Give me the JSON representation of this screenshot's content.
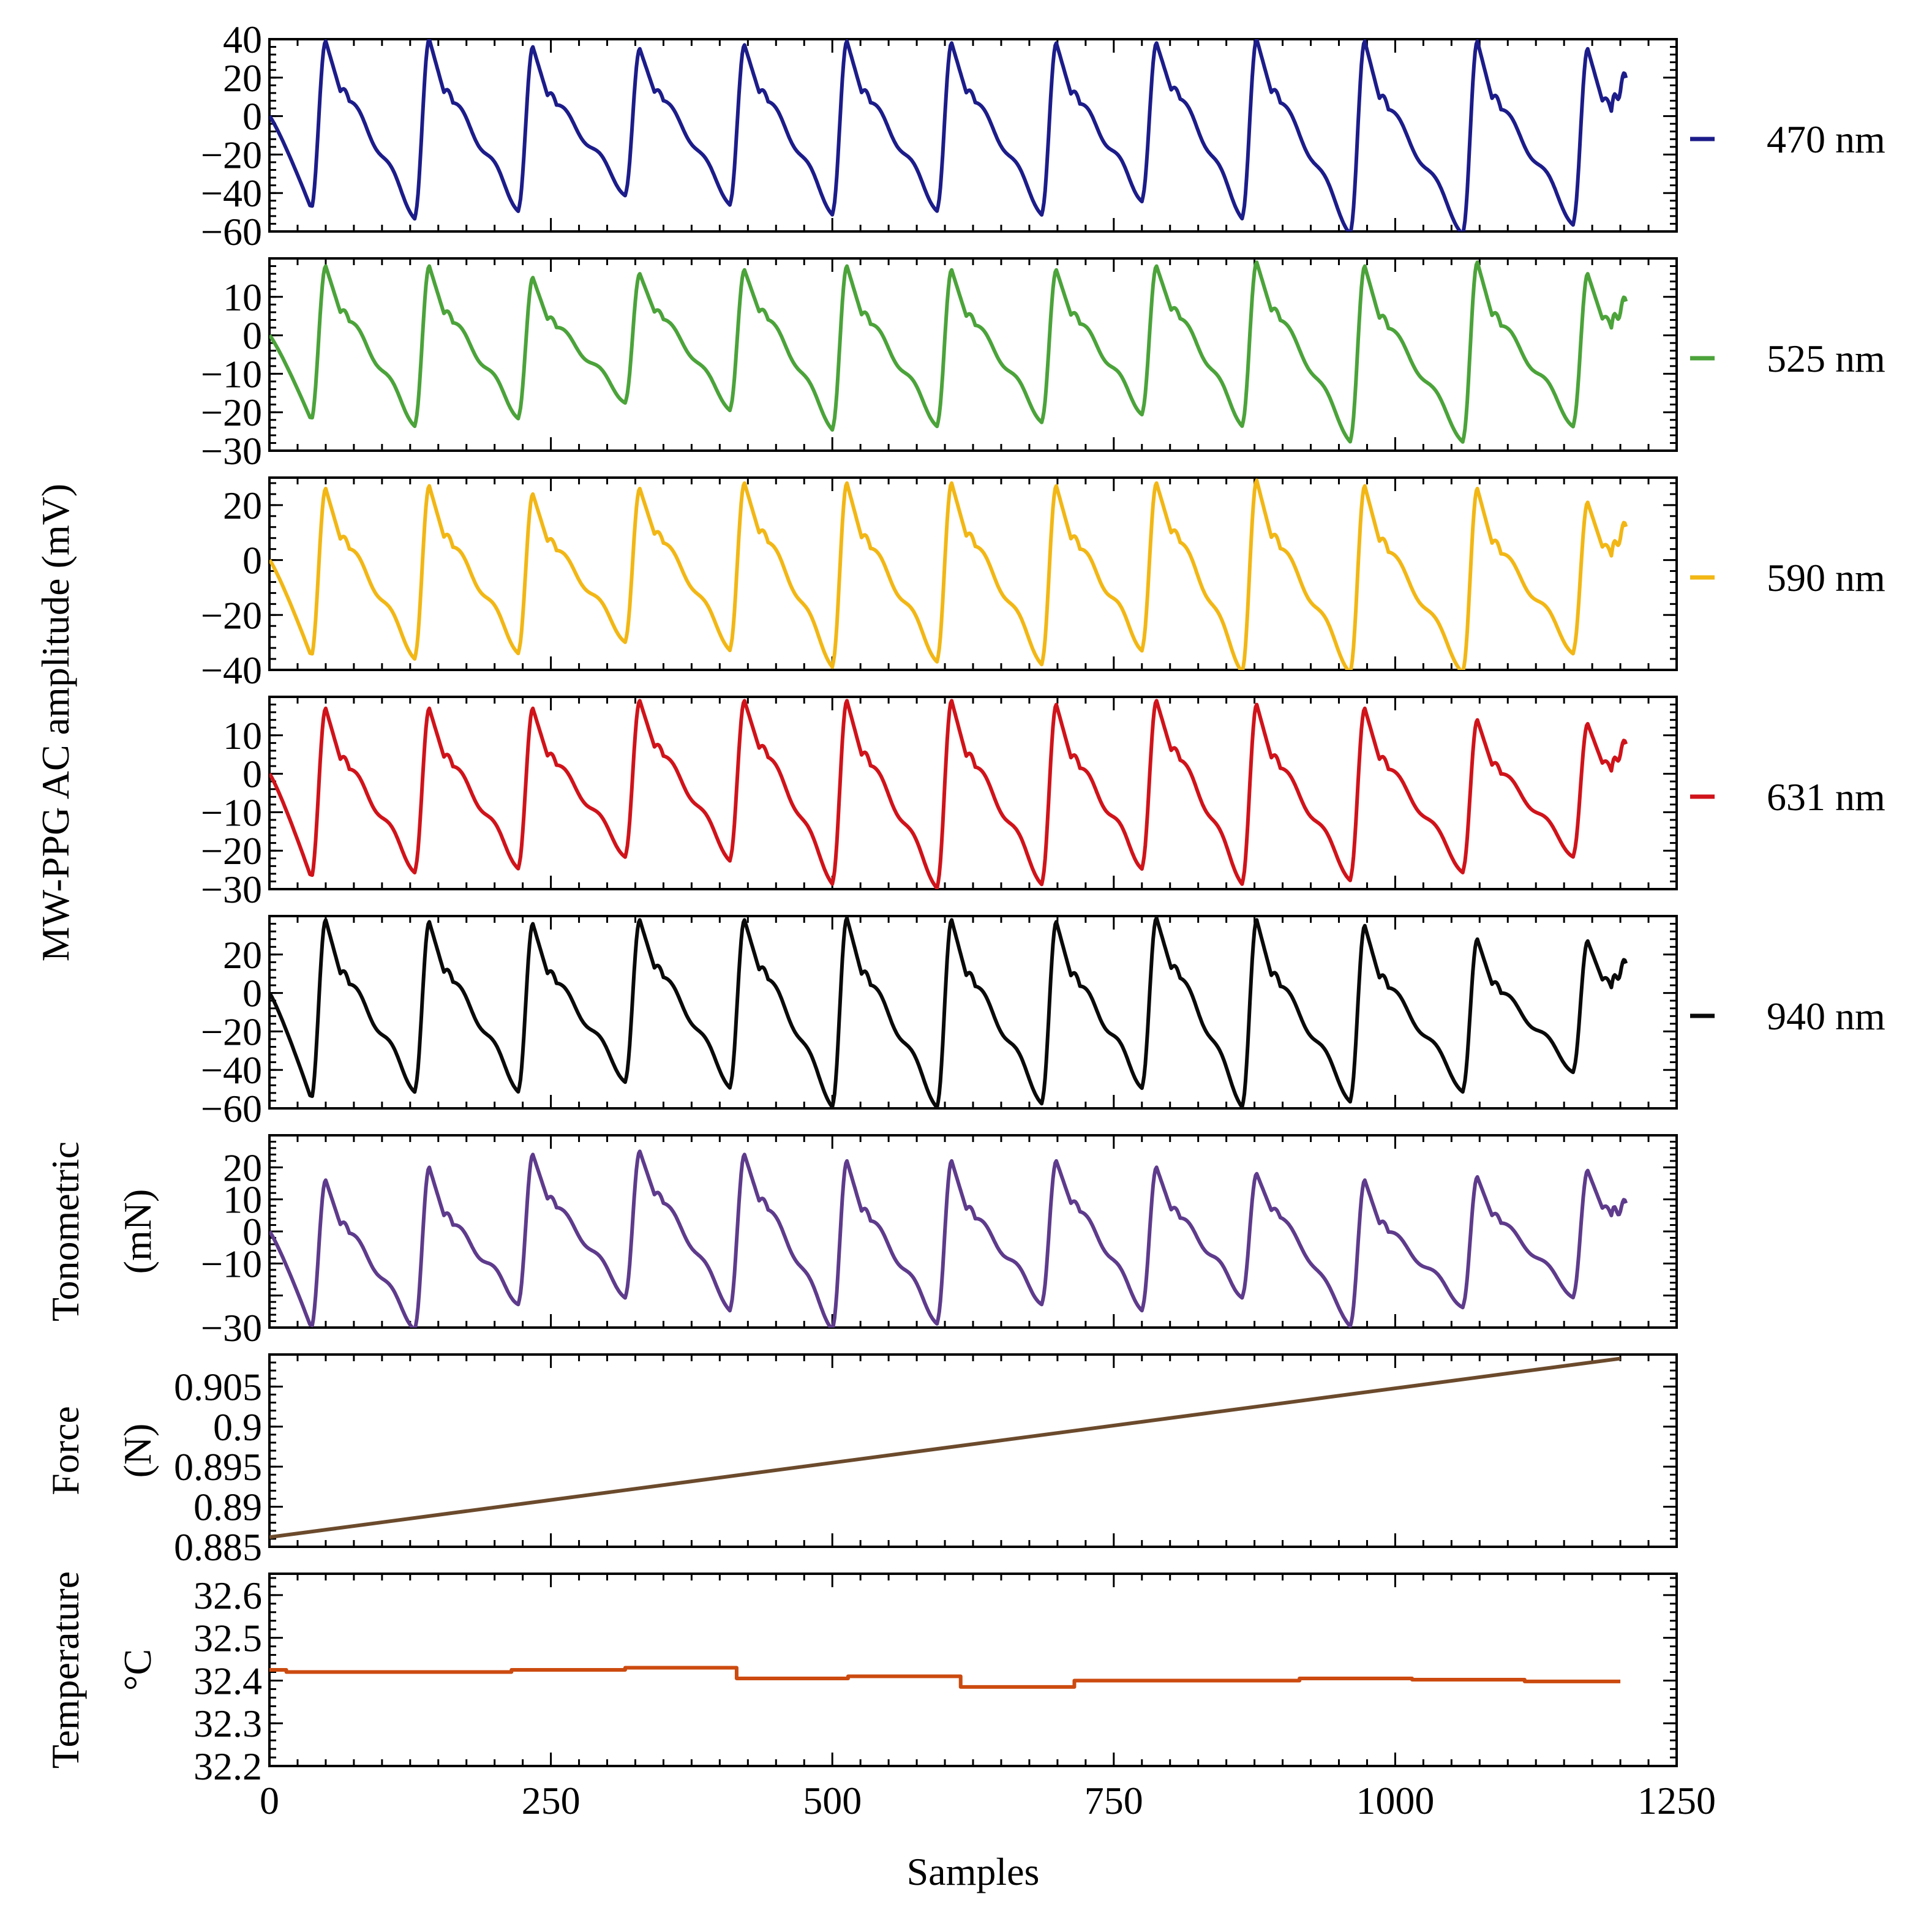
{
  "chart_data": {
    "type": "line",
    "layout": "stacked-panels",
    "shared_x": {
      "label": "Samples",
      "range": [
        0,
        1250
      ],
      "ticks": [
        0,
        250,
        500,
        750,
        1000,
        1250
      ],
      "tick_labels": [
        "0",
        "250",
        "500",
        "750",
        "1000",
        "1250"
      ]
    },
    "group_ylabel": "MW-PPG AC amplitude (mV)",
    "beat_onsets": [
      0,
      37,
      129,
      221,
      316,
      409,
      500,
      593,
      686,
      775,
      864,
      960,
      1060,
      1158
    ],
    "panels": [
      {
        "id": "ppg-470",
        "series_name": "470 nm",
        "color": "#1c1c8a",
        "ylim": [
          -60,
          40
        ],
        "yticks": [
          -60,
          -40,
          -20,
          0,
          20,
          40
        ],
        "ytick_labels": [
          "−60",
          "−40",
          "−20",
          "0",
          "20",
          "40"
        ],
        "troughs": [
          -48,
          -52,
          -48,
          -40,
          -45,
          -50,
          -48,
          -50,
          -43,
          -52,
          -60,
          -60,
          -55
        ],
        "peaks": [
          39,
          40,
          36,
          35,
          37,
          39,
          38,
          38,
          38,
          40,
          39,
          39,
          35
        ],
        "end_value": 18,
        "ylabel": ""
      },
      {
        "id": "ppg-525",
        "series_name": "525 nm",
        "color": "#4ba33a",
        "ylim": [
          -30,
          20
        ],
        "yticks": [
          -30,
          -20,
          -10,
          0,
          10
        ],
        "ytick_labels": [
          "−30",
          "−20",
          "−10",
          "0",
          "10"
        ],
        "troughs": [
          -22,
          -23,
          -21,
          -17,
          -19,
          -24,
          -23,
          -22,
          -20,
          -23,
          -27,
          -27,
          -23
        ],
        "peaks": [
          18,
          18,
          15,
          16,
          17,
          18,
          17,
          17,
          18,
          19,
          18,
          19,
          16
        ],
        "end_value": 8,
        "ylabel": ""
      },
      {
        "id": "ppg-590",
        "series_name": "590 nm",
        "color": "#f2b715",
        "ylim": [
          -40,
          30
        ],
        "yticks": [
          -40,
          -20,
          0,
          20
        ],
        "ytick_labels": [
          "−40",
          "−20",
          "0",
          "20"
        ],
        "troughs": [
          -35,
          -35,
          -33,
          -29,
          -32,
          -38,
          -36,
          -37,
          -32,
          -40,
          -40,
          -40,
          -33
        ],
        "peaks": [
          26,
          27,
          24,
          26,
          28,
          28,
          28,
          27,
          28,
          29,
          27,
          26,
          21
        ],
        "end_value": 11,
        "ylabel": ""
      },
      {
        "id": "ppg-631",
        "series_name": "631 nm",
        "color": "#d0131a",
        "ylim": [
          -30,
          20
        ],
        "yticks": [
          -30,
          -20,
          -10,
          0,
          10
        ],
        "ytick_labels": [
          "−30",
          "−20",
          "−10",
          "0",
          "10"
        ],
        "troughs": [
          -27,
          -25,
          -24,
          -21,
          -22,
          -28,
          -29,
          -28,
          -24,
          -28,
          -27,
          -25,
          -21
        ],
        "peaks": [
          17,
          17,
          17,
          19,
          19,
          19,
          19,
          18,
          19,
          18,
          17,
          14,
          13
        ],
        "end_value": 7,
        "ylabel": ""
      },
      {
        "id": "ppg-940",
        "series_name": "940 nm",
        "color": "#0a0a0a",
        "ylim": [
          -60,
          40
        ],
        "yticks": [
          -60,
          -40,
          -20,
          0,
          20
        ],
        "ytick_labels": [
          "−60",
          "−40",
          "−20",
          "0",
          "20"
        ],
        "troughs": [
          -55,
          -50,
          -50,
          -45,
          -48,
          -58,
          -58,
          -56,
          -48,
          -58,
          -55,
          -50,
          -40
        ],
        "peaks": [
          38,
          37,
          36,
          38,
          38,
          39,
          38,
          37,
          39,
          38,
          35,
          28,
          27
        ],
        "end_value": 14,
        "ylabel": ""
      },
      {
        "id": "tonometric",
        "series_name": "Tonometric",
        "color": "#5e3b8c",
        "ylim": [
          -30,
          30
        ],
        "yticks": [
          -30,
          -20,
          -10,
          0,
          10,
          20
        ],
        "ytick_labels": [
          "−30",
          "",
          "−10",
          "0",
          "10",
          "20"
        ],
        "troughs": [
          -30,
          -30,
          -22,
          -20,
          -24,
          -30,
          -28,
          -22,
          -24,
          -20,
          -29,
          -23,
          -20
        ],
        "peaks": [
          16,
          20,
          24,
          25,
          24,
          22,
          22,
          22,
          20,
          18,
          16,
          17,
          19
        ],
        "end_value": 8,
        "ylabel": "Tonometric (mN)",
        "ylabel_lines": [
          "Tonometric",
          "(mN)"
        ]
      },
      {
        "id": "force",
        "series_name": "Force",
        "color": "#6b4a2c",
        "ylim": [
          0.885,
          0.909
        ],
        "yticks": [
          0.885,
          0.89,
          0.895,
          0.9,
          0.905
        ],
        "ytick_labels": [
          "0.885",
          "0.89",
          "0.895",
          "0.9",
          "0.905"
        ],
        "x": [
          0,
          1200
        ],
        "y": [
          0.8862,
          0.9085
        ],
        "ylabel": "Force (N)",
        "ylabel_lines": [
          "Force",
          "(N)"
        ]
      },
      {
        "id": "temperature",
        "series_name": "Temperature",
        "color": "#cc4a0f",
        "ylim": [
          32.2,
          32.65
        ],
        "yticks": [
          32.2,
          32.3,
          32.4,
          32.5,
          32.6
        ],
        "ytick_labels": [
          "32.2",
          "32.3",
          "32.4",
          "32.5",
          "32.6"
        ],
        "steps": [
          {
            "x0": 0,
            "x1": 15,
            "y": 32.425
          },
          {
            "x0": 15,
            "x1": 215,
            "y": 32.42
          },
          {
            "x0": 215,
            "x1": 316,
            "y": 32.425
          },
          {
            "x0": 316,
            "x1": 415,
            "y": 32.43
          },
          {
            "x0": 415,
            "x1": 514,
            "y": 32.405
          },
          {
            "x0": 514,
            "x1": 614,
            "y": 32.41
          },
          {
            "x0": 614,
            "x1": 715,
            "y": 32.385
          },
          {
            "x0": 715,
            "x1": 915,
            "y": 32.4
          },
          {
            "x0": 915,
            "x1": 1015,
            "y": 32.405
          },
          {
            "x0": 1015,
            "x1": 1115,
            "y": 32.402
          },
          {
            "x0": 1115,
            "x1": 1200,
            "y": 32.398
          }
        ],
        "ylabel": "Temperature °C",
        "ylabel_lines": [
          "Temperature",
          "°C"
        ]
      }
    ]
  }
}
